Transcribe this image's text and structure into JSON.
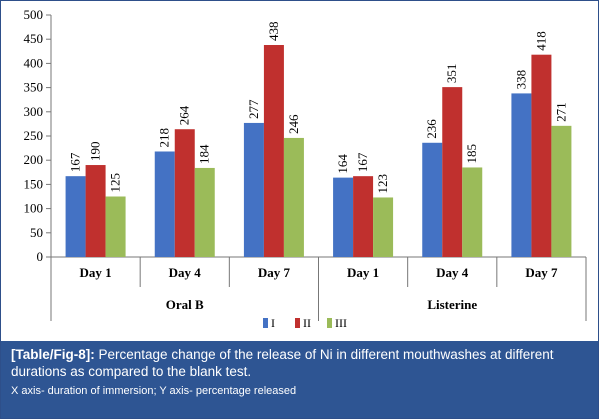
{
  "chart_data": {
    "type": "bar",
    "title": "",
    "xlabel": "",
    "ylabel": "",
    "ylim": [
      0,
      500
    ],
    "yticks": [
      "0",
      "50",
      "100",
      "150",
      "200",
      "250",
      "300",
      "350",
      "400",
      "450",
      "500"
    ],
    "groups": [
      {
        "name": "Oral B",
        "categories": [
          "Day 1",
          "Day 4",
          "Day 7"
        ]
      },
      {
        "name": "Listerine",
        "categories": [
          "Day 1",
          "Day 4",
          "Day 7"
        ]
      }
    ],
    "series": [
      {
        "name": "I",
        "color": "#4472c4",
        "values": [
          167,
          218,
          277,
          164,
          236,
          338
        ]
      },
      {
        "name": "II",
        "color": "#c0302e",
        "values": [
          190,
          264,
          438,
          167,
          351,
          418
        ]
      },
      {
        "name": "III",
        "color": "#9bbb59",
        "values": [
          125,
          184,
          246,
          123,
          185,
          271
        ]
      }
    ],
    "legend_labels": [
      "I",
      "II",
      "III"
    ],
    "legend_position": "bottom",
    "grid": false
  },
  "caption": {
    "ref": "[Table/Fig-8]:",
    "text": "Percentage change of the release of Ni in different mouthwashes at different durations as compared to the blank test.",
    "note": "X axis- duration of immersion; Y axis- percentage released"
  }
}
